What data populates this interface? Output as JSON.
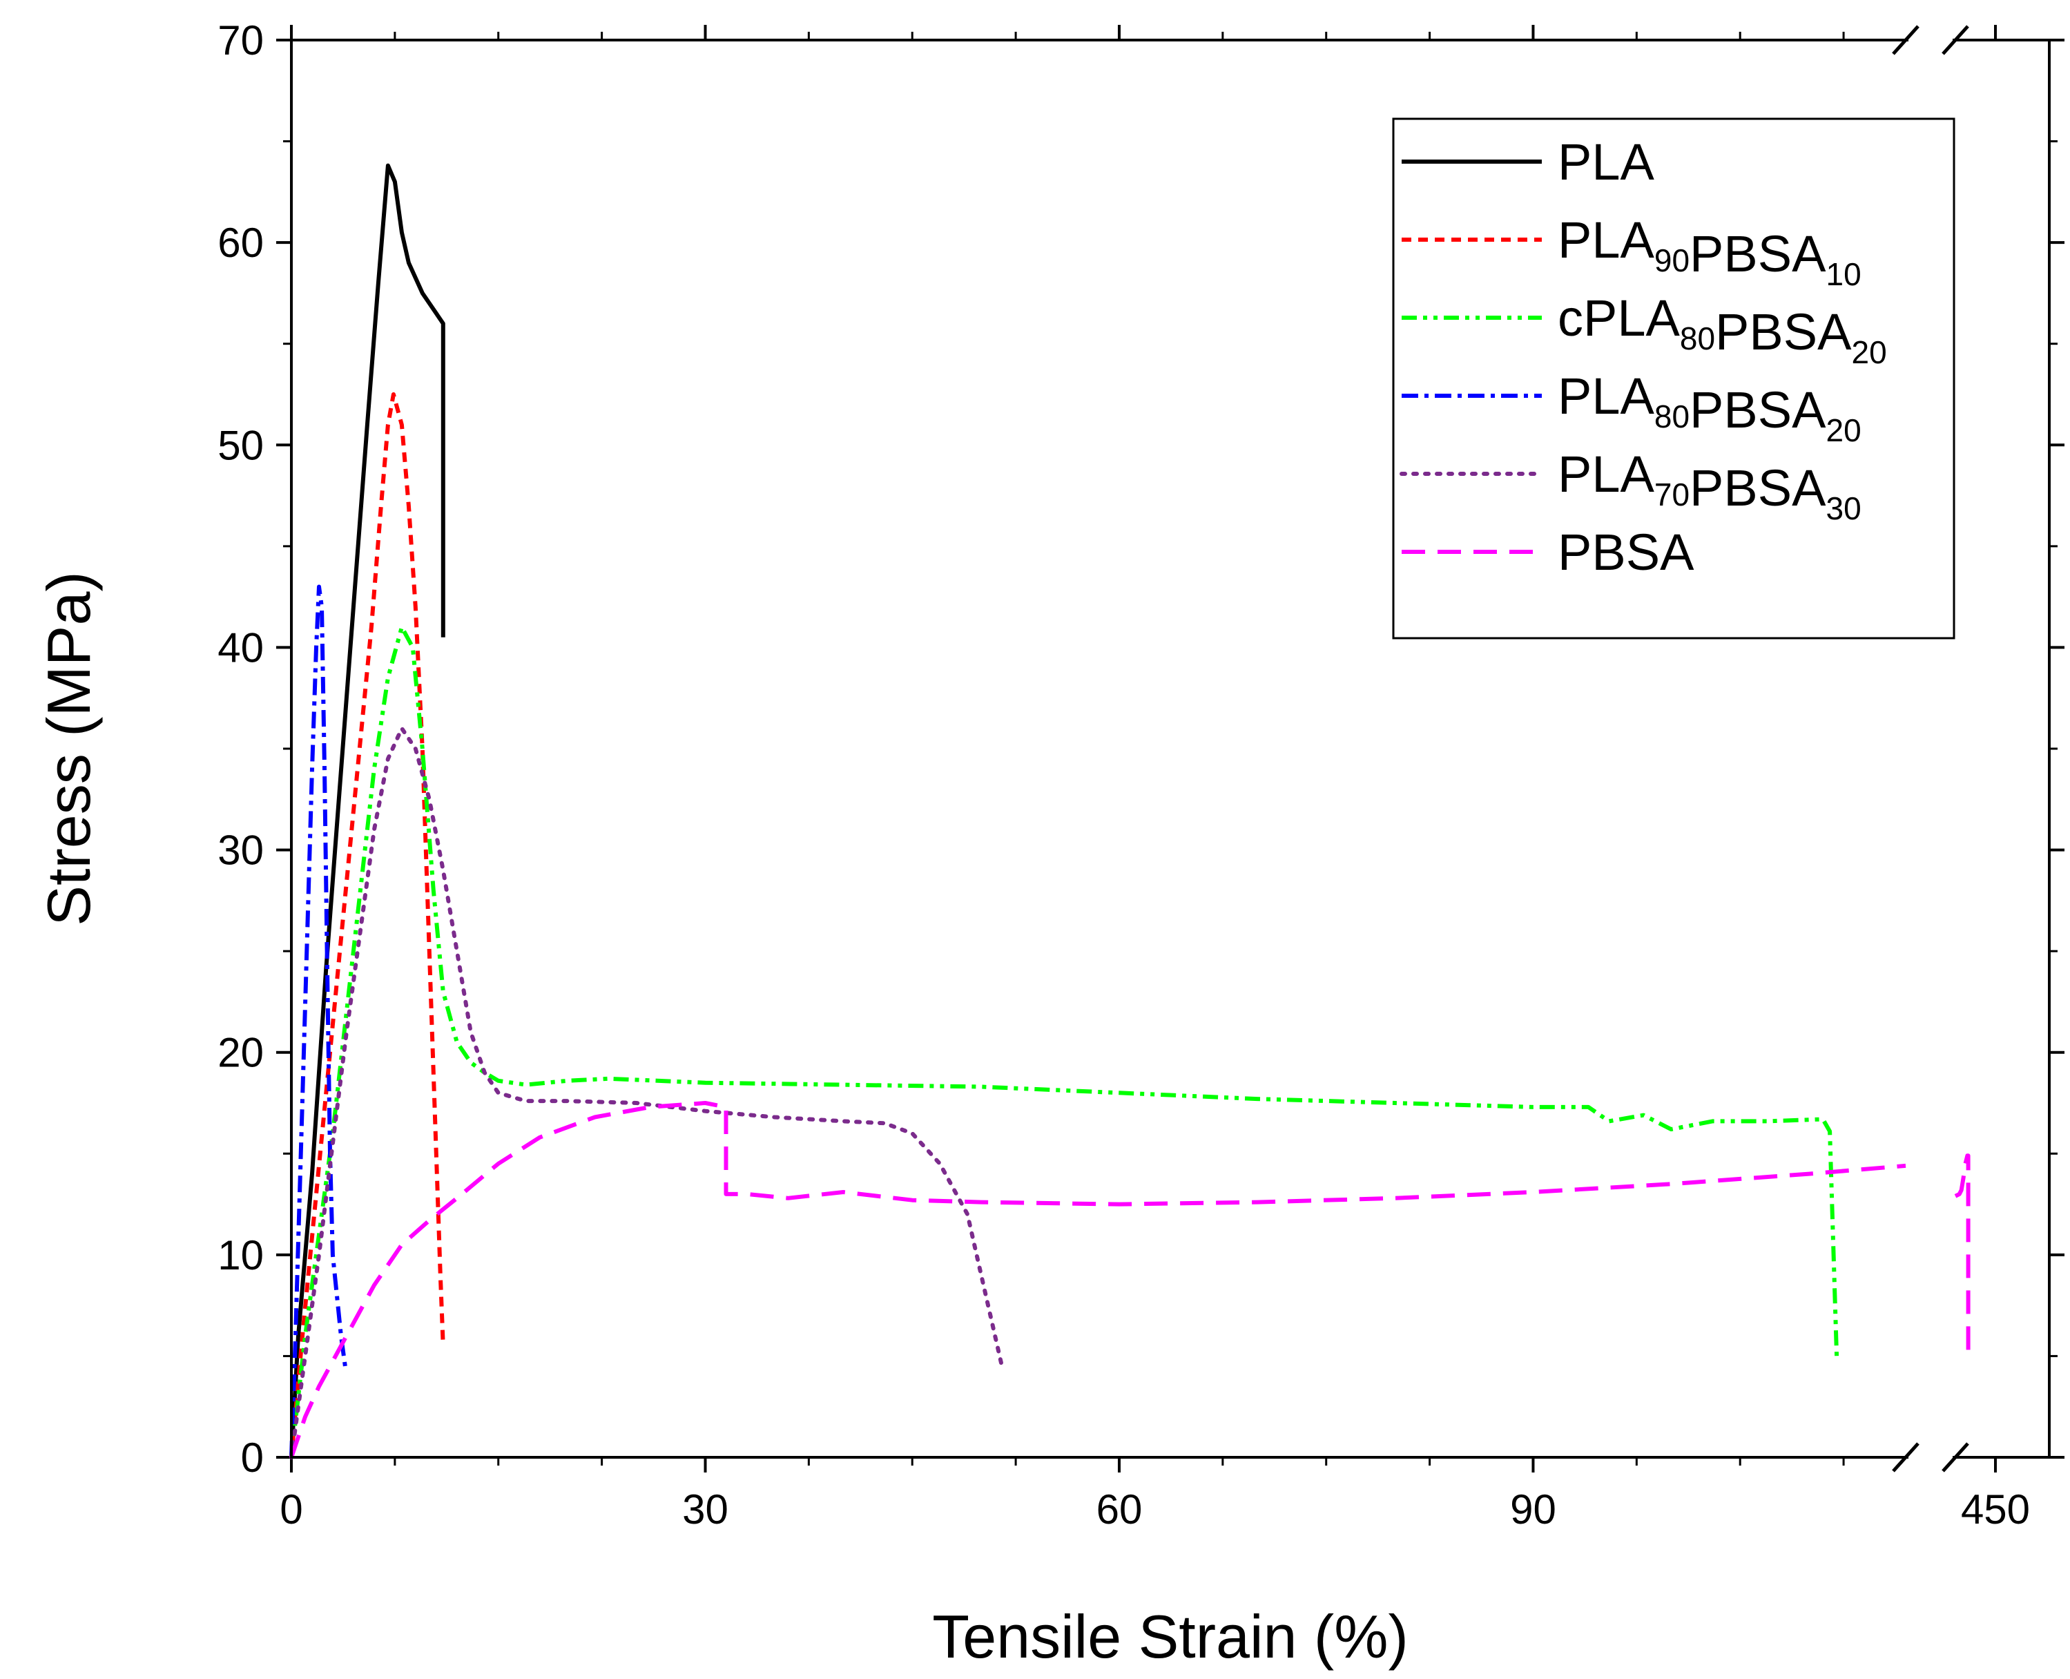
{
  "chart_data": {
    "type": "line",
    "title": "",
    "xlabel": "Tensile Strain (%)",
    "ylabel": "Stress (MPa)",
    "ylim": [
      0,
      70
    ],
    "xlim": [
      0,
      450
    ],
    "x_axis_break": {
      "after": 117,
      "resume": 440
    },
    "x_ticks": [
      0,
      30,
      60,
      90,
      450
    ],
    "y_ticks": [
      0,
      10,
      20,
      30,
      40,
      50,
      60,
      70
    ],
    "legend_position": "top-right",
    "series": [
      {
        "name": "PLA",
        "label_parts": [
          [
            "PLA",
            ""
          ]
        ],
        "color": "#000000",
        "dash": "solid",
        "points": [
          [
            0,
            0
          ],
          [
            0.5,
            6
          ],
          [
            1.5,
            14
          ],
          [
            2.5,
            24
          ],
          [
            3.5,
            33
          ],
          [
            4.5,
            42
          ],
          [
            5.5,
            51
          ],
          [
            6.3,
            58
          ],
          [
            7.0,
            63.8
          ],
          [
            7.5,
            63.0
          ],
          [
            8.0,
            60.5
          ],
          [
            8.5,
            59.0
          ],
          [
            9.5,
            57.5
          ],
          [
            10.5,
            56.5
          ],
          [
            11.0,
            56.0
          ],
          [
            11.0,
            40.5
          ]
        ]
      },
      {
        "name": "PLA90PBSA10",
        "label_parts": [
          [
            "PLA",
            "90"
          ],
          [
            "PBSA",
            "10"
          ]
        ],
        "color": "#ff0000",
        "dash": "short-dash",
        "points": [
          [
            0,
            0
          ],
          [
            0.8,
            6
          ],
          [
            1.8,
            13
          ],
          [
            2.8,
            20
          ],
          [
            3.8,
            27
          ],
          [
            4.8,
            34
          ],
          [
            5.8,
            41
          ],
          [
            6.5,
            47
          ],
          [
            7.0,
            51
          ],
          [
            7.4,
            52.5
          ],
          [
            8.0,
            51
          ],
          [
            8.5,
            47
          ],
          [
            9.0,
            42
          ],
          [
            9.5,
            35
          ],
          [
            10.0,
            25
          ],
          [
            10.5,
            15
          ],
          [
            10.8,
            9
          ],
          [
            11.0,
            5.5
          ]
        ]
      },
      {
        "name": "cPLA80PBSA20",
        "label_parts": [
          [
            "cPLA",
            "80"
          ],
          [
            "PBSA",
            "20"
          ]
        ],
        "color": "#00ff00",
        "dash": "dash-dot-dot",
        "points": [
          [
            0,
            0
          ],
          [
            1,
            6
          ],
          [
            2,
            11
          ],
          [
            3,
            16
          ],
          [
            4,
            22
          ],
          [
            5,
            28
          ],
          [
            6,
            34
          ],
          [
            7,
            38.5
          ],
          [
            8,
            41
          ],
          [
            8.8,
            40
          ],
          [
            9.5,
            35
          ],
          [
            10.3,
            28
          ],
          [
            11,
            23
          ],
          [
            12,
            20.5
          ],
          [
            13,
            19.5
          ],
          [
            14,
            19
          ],
          [
            15,
            18.6
          ],
          [
            17,
            18.4
          ],
          [
            20,
            18.6
          ],
          [
            23,
            18.7
          ],
          [
            30,
            18.5
          ],
          [
            40,
            18.4
          ],
          [
            50,
            18.3
          ],
          [
            60,
            18.0
          ],
          [
            70,
            17.7
          ],
          [
            80,
            17.5
          ],
          [
            90,
            17.3
          ],
          [
            94,
            17.3
          ],
          [
            95.5,
            16.6
          ],
          [
            98,
            16.9
          ],
          [
            100,
            16.2
          ],
          [
            103,
            16.6
          ],
          [
            107,
            16.6
          ],
          [
            111,
            16.7
          ],
          [
            111.5,
            16.1
          ],
          [
            112,
            5
          ]
        ]
      },
      {
        "name": "PLA80PBSA20",
        "label_parts": [
          [
            "PLA",
            "80"
          ],
          [
            "PBSA",
            "20"
          ]
        ],
        "color": "#0000ff",
        "dash": "dash-dot",
        "points": [
          [
            0,
            0
          ],
          [
            0.3,
            6
          ],
          [
            0.6,
            13
          ],
          [
            0.9,
            20
          ],
          [
            1.2,
            27
          ],
          [
            1.5,
            34
          ],
          [
            1.8,
            40
          ],
          [
            2.0,
            43
          ],
          [
            2.2,
            42
          ],
          [
            2.4,
            34
          ],
          [
            2.6,
            24
          ],
          [
            2.8,
            15
          ],
          [
            3.0,
            10
          ],
          [
            3.3,
            8
          ],
          [
            3.6,
            6
          ],
          [
            3.9,
            4.5
          ]
        ]
      },
      {
        "name": "PLA70PBSA30",
        "label_parts": [
          [
            "PLA",
            "70"
          ],
          [
            "PBSA",
            "30"
          ]
        ],
        "color": "#7b2b8c",
        "dash": "dotted",
        "points": [
          [
            0,
            0
          ],
          [
            1,
            5
          ],
          [
            2,
            10
          ],
          [
            3,
            15.5
          ],
          [
            4,
            21
          ],
          [
            5,
            26
          ],
          [
            6,
            31
          ],
          [
            7,
            34.5
          ],
          [
            8,
            36
          ],
          [
            9,
            35
          ],
          [
            10,
            32.5
          ],
          [
            11,
            29
          ],
          [
            12,
            25
          ],
          [
            13,
            21
          ],
          [
            14,
            19
          ],
          [
            15,
            18
          ],
          [
            17,
            17.6
          ],
          [
            20,
            17.6
          ],
          [
            25,
            17.5
          ],
          [
            30,
            17.1
          ],
          [
            35,
            16.8
          ],
          [
            40,
            16.6
          ],
          [
            43,
            16.5
          ],
          [
            45,
            16.0
          ],
          [
            47,
            14.5
          ],
          [
            49,
            12
          ],
          [
            50,
            9
          ],
          [
            51,
            6
          ],
          [
            51.5,
            4.5
          ]
        ]
      },
      {
        "name": "PBSA",
        "label_parts": [
          [
            "PBSA",
            ""
          ]
        ],
        "color": "#ff00ff",
        "dash": "long-dash",
        "points": [
          [
            0,
            0
          ],
          [
            1,
            2
          ],
          [
            2,
            3.5
          ],
          [
            4,
            6
          ],
          [
            6,
            8.5
          ],
          [
            8,
            10.5
          ],
          [
            10,
            11.7
          ],
          [
            12,
            12.8
          ],
          [
            15,
            14.5
          ],
          [
            18,
            15.8
          ],
          [
            22,
            16.8
          ],
          [
            26,
            17.3
          ],
          [
            30,
            17.5
          ],
          [
            31.5,
            17.3
          ],
          [
            31.5,
            13
          ],
          [
            33,
            13.0
          ],
          [
            36,
            12.8
          ],
          [
            40,
            13.1
          ],
          [
            45,
            12.7
          ],
          [
            50,
            12.6
          ],
          [
            60,
            12.5
          ],
          [
            70,
            12.6
          ],
          [
            80,
            12.8
          ],
          [
            90,
            13.1
          ],
          [
            100,
            13.5
          ],
          [
            110,
            14.0
          ],
          [
            117,
            14.4
          ],
          [
            440,
            12.9
          ],
          [
            441,
            13.0
          ],
          [
            441.5,
            13.2
          ],
          [
            442,
            13.8
          ],
          [
            442.5,
            14.5
          ],
          [
            443,
            14.9
          ],
          [
            443.2,
            14.9
          ],
          [
            443.2,
            5
          ]
        ]
      }
    ]
  }
}
